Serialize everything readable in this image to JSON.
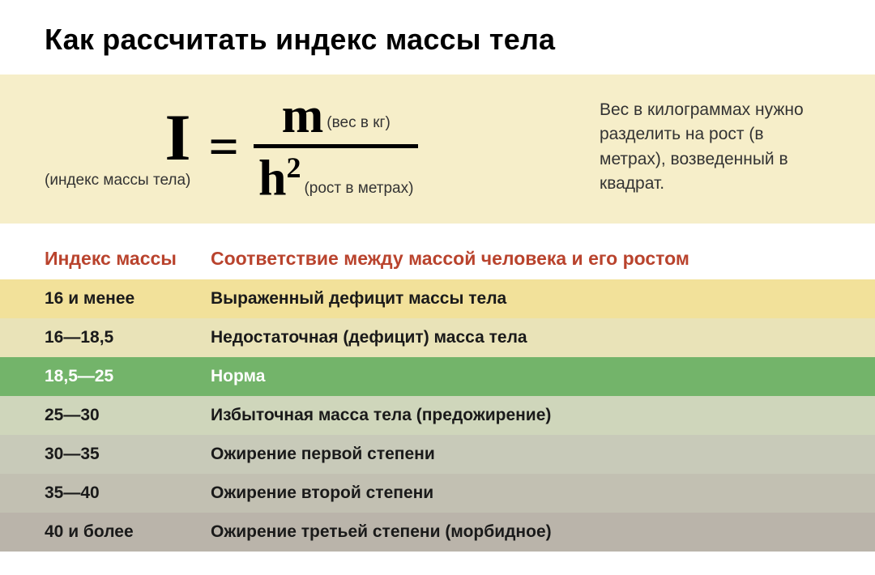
{
  "title": "Как рассчитать индекс массы тела",
  "formula": {
    "i_var": "I",
    "i_label": "(индекс массы тела)",
    "eq": "=",
    "m_var": "m",
    "m_label": "(вес в кг)",
    "h_var": "h",
    "h_sup": "2",
    "h_label": "(рост в метрах)"
  },
  "description": "Вес в килограммах нужно разделить на рост (в метрах), возведенный в квадрат.",
  "table": {
    "header_col1": "Индекс массы",
    "header_col2": "Соответствие между массой человека и его ростом",
    "header_color": "#b9432d",
    "rows": [
      {
        "range": "16 и менее",
        "label": "Выраженный дефицит массы тела",
        "bg": "#f2e19a",
        "highlight": false
      },
      {
        "range": "16—18,5",
        "label": "Недостаточная (дефицит) масса тела",
        "bg": "#e9e3b8",
        "highlight": false
      },
      {
        "range": "18,5—25",
        "label": "Норма",
        "bg": "#73b46a",
        "highlight": true
      },
      {
        "range": "25—30",
        "label": "Избыточная масса тела (предожирение)",
        "bg": "#cfd6bb",
        "highlight": false
      },
      {
        "range": "30—35",
        "label": "Ожирение первой степени",
        "bg": "#c8cab9",
        "highlight": false
      },
      {
        "range": "35—40",
        "label": "Ожирение второй степени",
        "bg": "#c2c0b2",
        "highlight": false
      },
      {
        "range": "40 и более",
        "label": "Ожирение третьей степени (морбидное)",
        "bg": "#bab4aa",
        "highlight": false
      }
    ]
  },
  "colors": {
    "formula_panel_bg": "#f6eec9",
    "page_bg": "#ffffff",
    "title_color": "#000000"
  }
}
